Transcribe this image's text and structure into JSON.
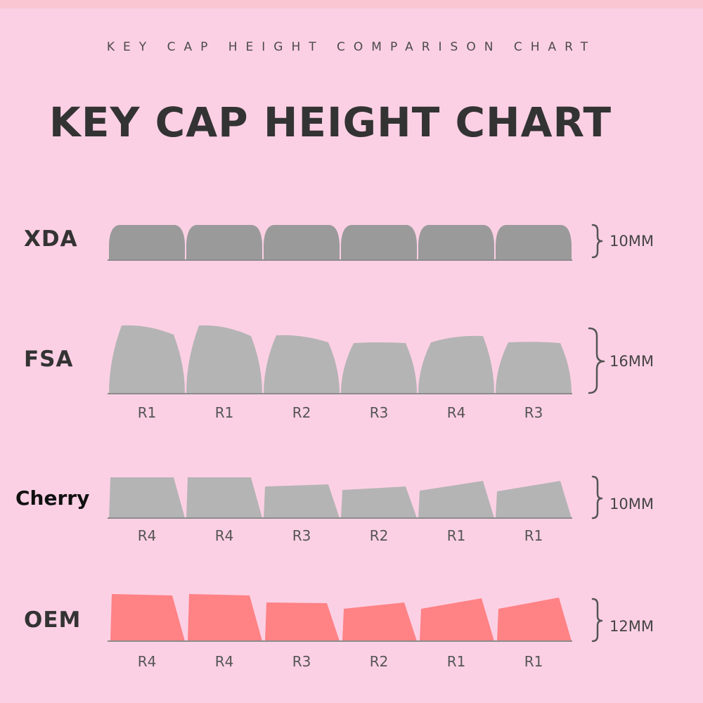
{
  "subtitle": "KEY CAP HEIGHT COMPARISON CHART",
  "title": "KEY CAP HEIGHT CHART",
  "colors": {
    "background": "#fcd0e4",
    "dark_gray_key": "#9a9a9a",
    "light_gray_key": "#b4b4b4",
    "pink_key": "#ff8285"
  },
  "profiles": [
    {
      "name": "XDA",
      "height": "10MM",
      "rows": []
    },
    {
      "name": "FSA",
      "height": "16MM",
      "rows": [
        "R1",
        "R1",
        "R2",
        "R3",
        "R4",
        "R3"
      ]
    },
    {
      "name": "Cherry",
      "height": "10MM",
      "rows": [
        "R4",
        "R4",
        "R3",
        "R2",
        "R1",
        "R1"
      ]
    },
    {
      "name": "OEM",
      "height": "12MM",
      "rows": [
        "R4",
        "R4",
        "R3",
        "R2",
        "R1",
        "R1"
      ]
    }
  ]
}
